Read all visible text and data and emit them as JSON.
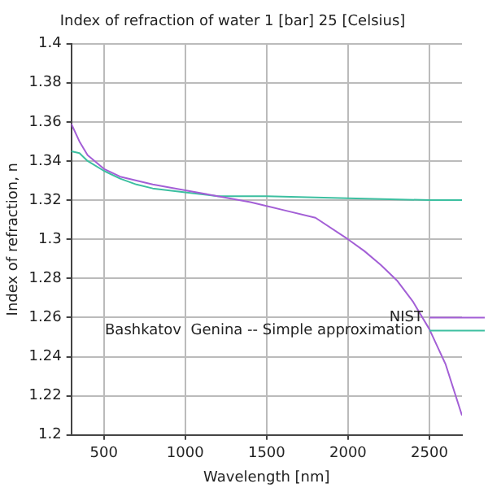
{
  "chart_data": {
    "type": "line",
    "title": "Index of refraction of water 1 [bar] 25 [Celsius]",
    "xlabel": "Wavelength [nm]",
    "ylabel": "Index of refraction, n",
    "xlim": [
      300,
      2700
    ],
    "xticks": [
      500,
      1000,
      1500,
      2000,
      2500
    ],
    "ylim": [
      1.2,
      1.4
    ],
    "yticks": [
      1.2,
      1.22,
      1.24,
      1.26,
      1.28,
      1.3,
      1.32,
      1.34,
      1.36,
      1.38,
      1.4
    ],
    "grid": true,
    "legend": "right",
    "marker": "none",
    "line_style": "solid",
    "series": [
      {
        "name": "NIST",
        "color": "#a35fd6",
        "x": [
          300,
          350,
          400,
          500,
          600,
          700,
          800,
          1000,
          1200,
          1400,
          1600,
          1800,
          2000,
          2100,
          2200,
          2300,
          2400,
          2500,
          2600,
          2700
        ],
        "values": [
          1.359,
          1.35,
          1.343,
          1.336,
          1.332,
          1.33,
          1.328,
          1.325,
          1.322,
          1.319,
          1.315,
          1.311,
          1.3,
          1.294,
          1.287,
          1.279,
          1.268,
          1.254,
          1.236,
          1.21
        ]
      },
      {
        "name": "Bashkatov  Genina -- Simple approximation",
        "color": "#3cbfa0",
        "x": [
          300,
          350,
          400,
          500,
          600,
          700,
          800,
          1000,
          1200,
          1500,
          2000,
          2500,
          2700
        ],
        "values": [
          1.345,
          1.344,
          1.34,
          1.335,
          1.331,
          1.328,
          1.326,
          1.324,
          1.322,
          1.322,
          1.321,
          1.32,
          1.32
        ]
      }
    ]
  }
}
